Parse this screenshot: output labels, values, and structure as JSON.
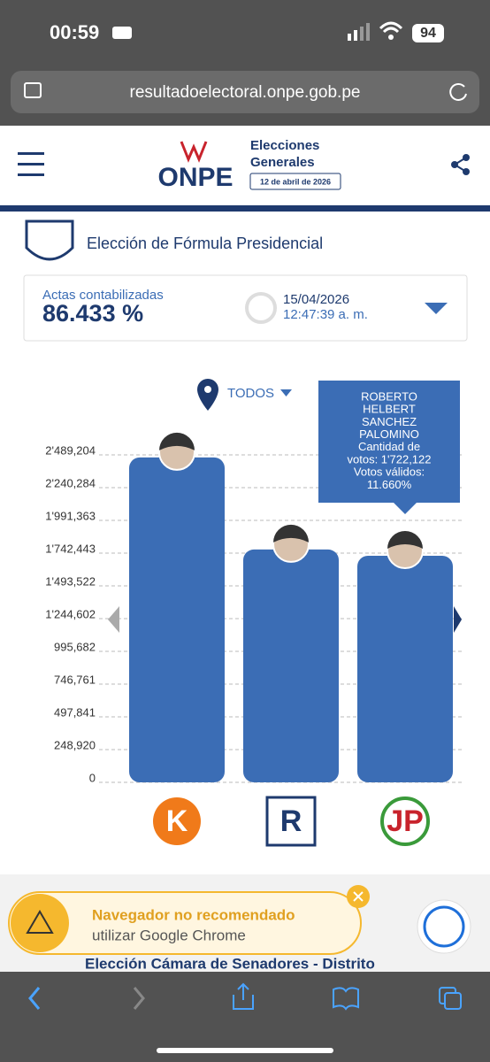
{
  "status_bar": {
    "time": "00:59",
    "battery": "94"
  },
  "browser": {
    "url": "resultadoelectoral.onpe.gob.pe"
  },
  "header": {
    "logo": "ONPE",
    "title_line1": "Elecciones",
    "title_line2": "Generales",
    "date": "12 de abril de 2026"
  },
  "section": {
    "title": "Elección de Fórmula Presidencial"
  },
  "summary": {
    "label": "Actas contabilizadas",
    "value": "86.433 %",
    "date": "15/04/2026",
    "time": "12:47:39 a. m."
  },
  "filter": "TODOS",
  "chart_data": {
    "type": "bar",
    "categories": [
      "K",
      "R",
      "JP"
    ],
    "values": [
      2470000,
      1770000,
      1722122
    ],
    "color": "#3b6db5",
    "ylim": [
      0,
      2489204
    ],
    "yticks": [
      0,
      {
        "value": 248920,
        "label": "248,920"
      },
      {
        "value": 497841,
        "label": "497,841"
      },
      {
        "value": 746761,
        "label": "746,761"
      },
      {
        "value": 995682,
        "label": "995,682"
      },
      {
        "value": 1244602,
        "label": "1'244,602"
      },
      {
        "value": 1493522,
        "label": "1'493,522"
      },
      {
        "value": 1742443,
        "label": "1'742,443"
      },
      {
        "value": 1991363,
        "label": "1'991,363"
      },
      {
        "value": 2240284,
        "label": "2'240,284"
      },
      {
        "value": 2489204,
        "label": "2'489,204"
      }
    ],
    "grid": true,
    "tooltip": {
      "lines": [
        "ROBERTO",
        "HELBERT",
        "SANCHEZ",
        "PALOMINO",
        "Cantidad de",
        "votos: 1'722,122",
        "Votos válidos:",
        "11.660%"
      ]
    }
  },
  "banner": {
    "title": "Navegador no recomendado",
    "text": "utilizar Google Chrome"
  },
  "next_section": "Elección Cámara de Senadores - Distrito"
}
